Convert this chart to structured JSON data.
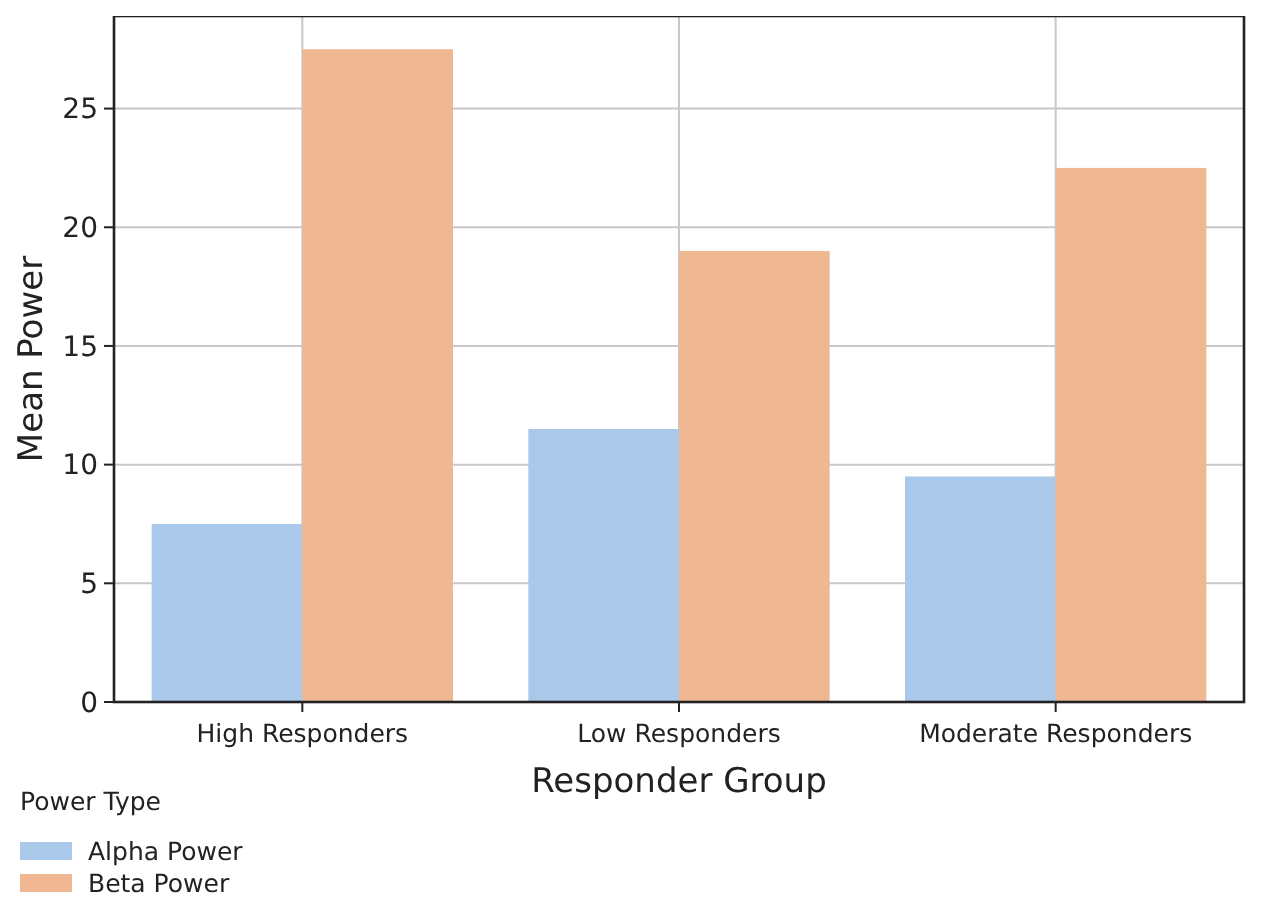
{
  "chart_data": {
    "type": "bar",
    "xlabel": "Responder Group",
    "ylabel": "Mean Power",
    "legend_title": "Power Type",
    "categories": [
      "High Responders",
      "Low Responders",
      "Moderate Responders"
    ],
    "series": [
      {
        "name": "Alpha Power",
        "color": "#a9c8ea",
        "values": [
          7.5,
          11.5,
          9.5
        ]
      },
      {
        "name": "Beta Power",
        "color": "#f0b892",
        "values": [
          27.5,
          19,
          22.5
        ]
      }
    ],
    "ylim": [
      0,
      28.9
    ],
    "yticks": [
      0,
      5,
      10,
      15,
      20,
      25
    ],
    "grid": true,
    "legend": "bottom left"
  }
}
